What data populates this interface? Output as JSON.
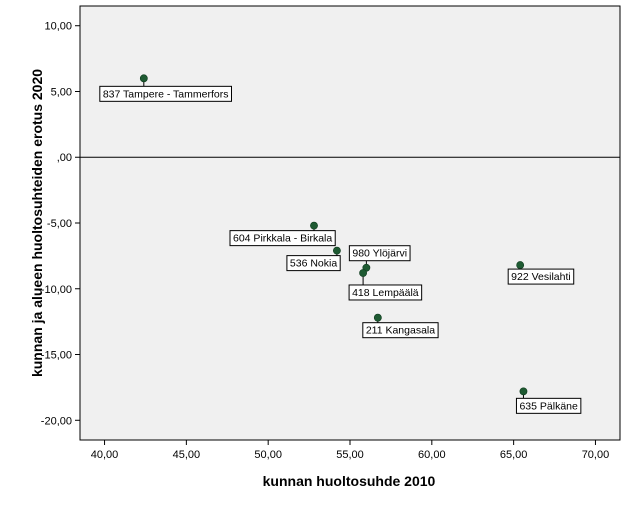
{
  "chart_data": {
    "type": "scatter",
    "xlabel": "kunnan huoltosuhde 2010",
    "ylabel": "kunnan ja alueen huoltosuhteiden erotus 2020",
    "xlim": [
      38.5,
      71.5
    ],
    "ylim": [
      -21.5,
      11.5
    ],
    "x_ticks": [
      40,
      45,
      50,
      55,
      60,
      65,
      70
    ],
    "x_tick_labels": [
      "40,00",
      "45,00",
      "50,00",
      "55,00",
      "60,00",
      "65,00",
      "70,00"
    ],
    "y_ticks": [
      10,
      5,
      0,
      -5,
      -10,
      -15,
      -20
    ],
    "y_tick_labels": [
      "10,00",
      "5,00",
      ",00",
      "-5,00",
      "-10,00",
      "-15,00",
      "-20,00"
    ],
    "reference_line_y": 0,
    "grid": false,
    "colors": {
      "plot_background": "#f0f0f0",
      "point": "#1e5a32",
      "axis": "#000000",
      "label_border": "#000000"
    },
    "points": [
      {
        "x": 42.4,
        "y": 6.0,
        "label": "837 Tampere - Tammerfors"
      },
      {
        "x": 52.8,
        "y": -5.2,
        "label": "604 Pirkkala - Birkala"
      },
      {
        "x": 54.2,
        "y": -7.1,
        "label": "536 Nokia"
      },
      {
        "x": 56.0,
        "y": -8.4,
        "label": "980 Ylöjärvi"
      },
      {
        "x": 55.8,
        "y": -8.8,
        "label": "418 Lempäälä"
      },
      {
        "x": 56.7,
        "y": -12.2,
        "label": "211 Kangasala"
      },
      {
        "x": 65.4,
        "y": -8.2,
        "label": "922 Vesilahti"
      },
      {
        "x": 65.6,
        "y": -17.8,
        "label": "635 Pälkäne"
      }
    ]
  }
}
